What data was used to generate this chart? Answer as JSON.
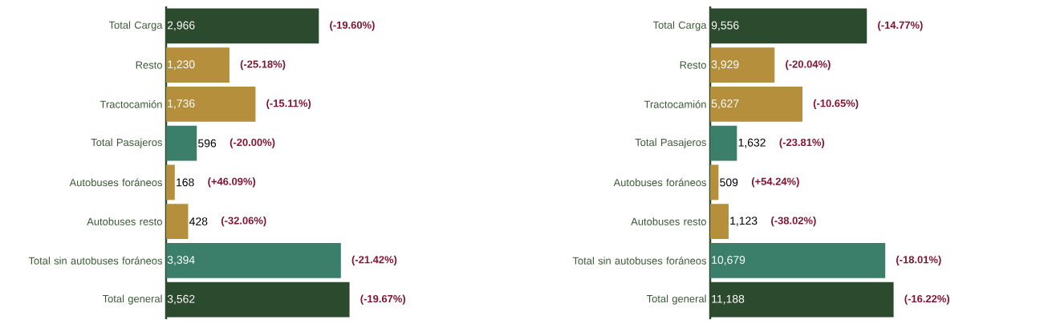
{
  "chart_data": [
    {
      "type": "bar",
      "orientation": "horizontal",
      "categories": [
        "Total Carga",
        "Resto",
        "Tractocamión",
        "Total Pasajeros",
        "Autobuses foráneos",
        "Autobuses resto",
        "Total sin autobuses foráneos",
        "Total general"
      ],
      "values": [
        2966,
        1230,
        1736,
        596,
        168,
        428,
        3394,
        3562
      ],
      "value_labels": [
        "2,966",
        "1,230",
        "1,736",
        "596",
        "168",
        "428",
        "3,394",
        "3,562"
      ],
      "colors": [
        "#2c4a2e",
        "#b58f3c",
        "#b58f3c",
        "#3b7f6b",
        "#b58f3c",
        "#b58f3c",
        "#3b7f6b",
        "#2c4a2e"
      ],
      "tick_labels": "y",
      "annotations": [
        "(-19.60%)",
        "(-25.18%)",
        "(-15.11%)",
        "(-20.00%)",
        "(+46.09%)",
        "(-32.06%)",
        "(-21.42%)",
        "(-19.67%)"
      ]
    },
    {
      "type": "bar",
      "orientation": "horizontal",
      "categories": [
        "Total Carga",
        "Resto",
        "Tractocamión",
        "Total Pasajeros",
        "Autobuses foráneos",
        "Autobuses resto",
        "Total sin autobuses foráneos",
        "Total general"
      ],
      "values": [
        9556,
        3929,
        5627,
        1632,
        509,
        1123,
        10679,
        11188
      ],
      "value_labels": [
        "9,556",
        "3,929",
        "5,627",
        "1,632",
        "509",
        "1,123",
        "10,679",
        "11,188"
      ],
      "colors": [
        "#2c4a2e",
        "#b58f3c",
        "#b58f3c",
        "#3b7f6b",
        "#b58f3c",
        "#b58f3c",
        "#3b7f6b",
        "#2c4a2e"
      ],
      "tick_labels": "y",
      "annotations": [
        "(-14.77%)",
        "(-20.04%)",
        "(-10.65%)",
        "(-23.81%)",
        "(+54.24%)",
        "(-38.02%)",
        "(-18.01%)",
        "(-16.22%)"
      ]
    }
  ]
}
